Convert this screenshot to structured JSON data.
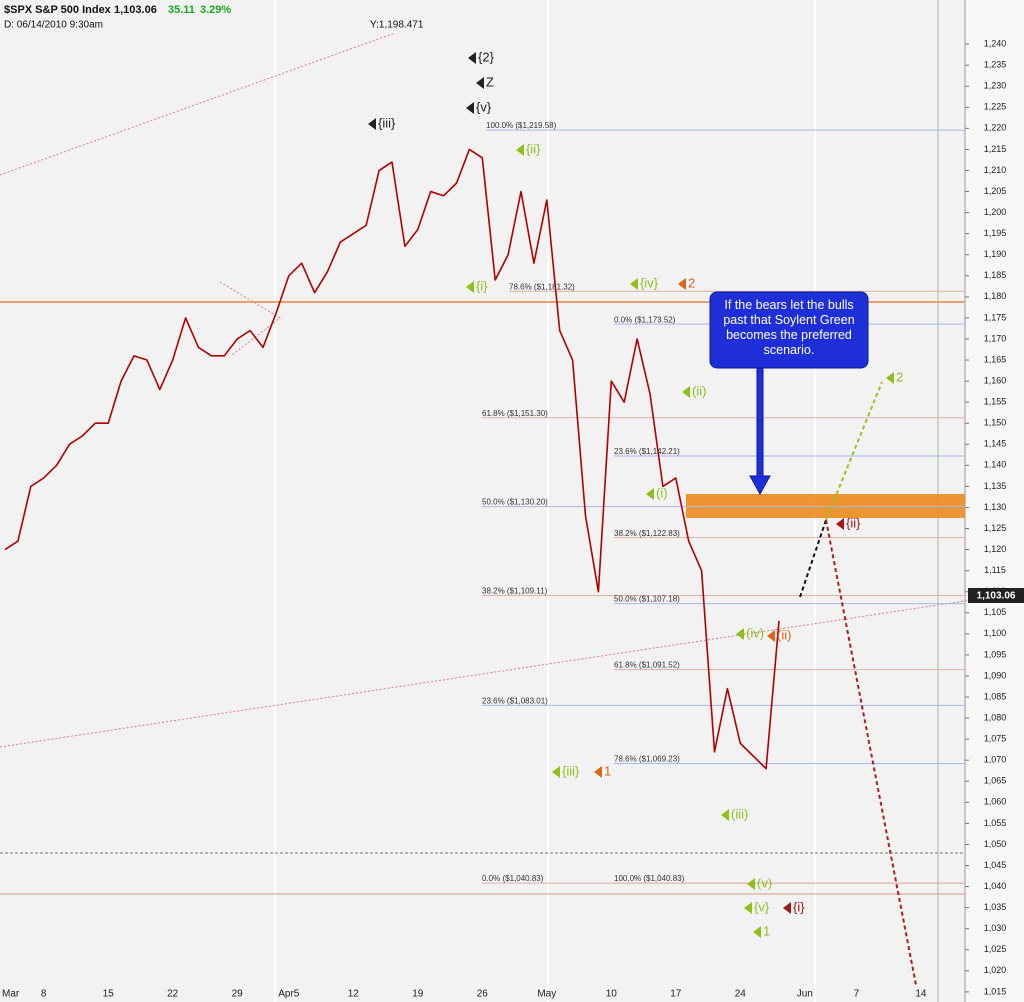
{
  "chart_data": {
    "type": "line",
    "title": "$SPX S&P 500 Index",
    "last": "1,103.06",
    "change": "35.11",
    "change_pct": "3.29%",
    "date_info": "D: 06/14/2010 9:30am",
    "cursor_info": "Y:1,198.471",
    "callout": "If the bears let the bulls past that Soylent Green becomes the preferred scenario.",
    "categories": [
      "Mar",
      null,
      null,
      "8",
      null,
      null,
      null,
      null,
      "15",
      null,
      null,
      null,
      null,
      "22",
      null,
      null,
      null,
      null,
      "29",
      null,
      null,
      null,
      "Apr5",
      null,
      null,
      null,
      null,
      "12",
      null,
      null,
      null,
      null,
      "19",
      null,
      null,
      null,
      null,
      "26",
      null,
      null,
      null,
      null,
      "May",
      null,
      null,
      null,
      null,
      "10",
      null,
      null,
      null,
      null,
      "17",
      null,
      null,
      null,
      null,
      "24",
      null,
      null,
      null,
      null,
      "Jun",
      null,
      null,
      null,
      "7",
      null,
      null,
      null,
      null,
      "14",
      null,
      null
    ],
    "series": [
      {
        "name": "$SPX",
        "color": "#b00000",
        "values": [
          1120,
          1122,
          1135,
          1137,
          1140,
          1145,
          1147,
          1150,
          1150,
          1160,
          1166,
          1165,
          1158,
          1165,
          1175,
          1168,
          1166,
          1166,
          1170,
          1172,
          1168,
          1176,
          1185,
          1188,
          1181,
          1186,
          1193,
          1195,
          1197,
          1210,
          1212,
          1192,
          1196,
          1205,
          1204,
          1207,
          1215,
          1213,
          1184,
          1190,
          1205,
          1188,
          1203,
          1172,
          1165,
          1128,
          1110,
          1160,
          1155,
          1170,
          1157,
          1135,
          1137,
          1122,
          1115,
          1072,
          1087,
          1074,
          1071,
          1068,
          1103.06,
          null,
          null,
          null,
          null,
          null,
          null,
          null,
          null,
          null,
          null,
          null,
          null,
          null
        ]
      }
    ],
    "ylim": [
      1012.6,
      1250
    ],
    "yticks": [
      {
        "value": 1015,
        "label": "1,015"
      },
      {
        "value": 1020,
        "label": "1,020"
      },
      {
        "value": 1025,
        "label": "1,025"
      },
      {
        "value": 1030,
        "label": "1,030"
      },
      {
        "value": 1035,
        "label": "1,035"
      },
      {
        "value": 1040,
        "label": "1,040"
      },
      {
        "value": 1045,
        "label": "1,045"
      },
      {
        "value": 1050,
        "label": "1,050"
      },
      {
        "value": 1055,
        "label": "1,055"
      },
      {
        "value": 1060,
        "label": "1,060"
      },
      {
        "value": 1065,
        "label": "1,065"
      },
      {
        "value": 1070,
        "label": "1,070"
      },
      {
        "value": 1075,
        "label": "1,075"
      },
      {
        "value": 1080,
        "label": "1,080"
      },
      {
        "value": 1085,
        "label": "1,085"
      },
      {
        "value": 1090,
        "label": "1,090"
      },
      {
        "value": 1095,
        "label": "1,095"
      },
      {
        "value": 1100,
        "label": "1,100"
      },
      {
        "value": 1105,
        "label": "1,105"
      },
      {
        "value": 1110,
        "label": "1,110"
      },
      {
        "value": 1115,
        "label": "1,115"
      },
      {
        "value": 1120,
        "label": "1,120"
      },
      {
        "value": 1125,
        "label": "1,125"
      },
      {
        "value": 1130,
        "label": "1,130"
      },
      {
        "value": 1135,
        "label": "1,135"
      },
      {
        "value": 1140,
        "label": "1,140"
      },
      {
        "value": 1145,
        "label": "1,145"
      },
      {
        "value": 1150,
        "label": "1,150"
      },
      {
        "value": 1155,
        "label": "1,155"
      },
      {
        "value": 1160,
        "label": "1,160"
      },
      {
        "value": 1165,
        "label": "1,165"
      },
      {
        "value": 1170,
        "label": "1,170"
      },
      {
        "value": 1175,
        "label": "1,175"
      },
      {
        "value": 1180,
        "label": "1,180"
      },
      {
        "value": 1185,
        "label": "1,185"
      },
      {
        "value": 1190,
        "label": "1,190"
      },
      {
        "value": 1195,
        "label": "1,195"
      },
      {
        "value": 1200,
        "label": "1,200"
      },
      {
        "value": 1205,
        "label": "1,205"
      },
      {
        "value": 1210,
        "label": "1,210"
      },
      {
        "value": 1215,
        "label": "1,215"
      },
      {
        "value": 1220,
        "label": "1,220"
      },
      {
        "value": 1225,
        "label": "1,225"
      },
      {
        "value": 1230,
        "label": "1,230"
      },
      {
        "value": 1235,
        "label": "1,235"
      },
      {
        "value": 1240,
        "label": "1,240"
      }
    ],
    "grid": false,
    "fib_levels": [
      {
        "value": 1219.58,
        "label": "100.0% ($1,219.58)"
      },
      {
        "value": 1181.32,
        "label": "78.6% ($1,181.32)"
      },
      {
        "value": 1173.52,
        "label": "0.0% ($1,173.52)"
      },
      {
        "value": 1151.3,
        "label": "61.8% ($1,151.30)"
      },
      {
        "value": 1130.2,
        "label": "50.0% ($1,130.20)"
      },
      {
        "value": 1109.11,
        "label": "38.2% ($1,109.11)"
      },
      {
        "value": 1083.01,
        "label": "23.6% ($1,083.01)"
      },
      {
        "value": 1040.83,
        "label": "0.0% ($1,040.83)"
      },
      {
        "value": 1142.21,
        "label": "23.6% ($1,142.21)"
      },
      {
        "value": 1122.83,
        "label": "38.2% ($1,122.83)"
      },
      {
        "value": 1107.18,
        "label": "50.0% ($1,107.18)"
      },
      {
        "value": 1091.52,
        "label": "61.8% ($1,091.52)"
      },
      {
        "value": 1069.23,
        "label": "78.6% ($1,069.23)"
      },
      {
        "value": 1040.83,
        "label": "100.0% ($1,040.83)"
      }
    ],
    "annotations": [
      {
        "text": "{2}",
        "color": "#222222"
      },
      {
        "text": "Z",
        "color": "#222222"
      },
      {
        "text": "{v}",
        "color": "#222222"
      },
      {
        "text": "{iii}",
        "color": "#222222"
      },
      {
        "text": "{ii}",
        "color": "#8fbf1f"
      },
      {
        "text": "{i}",
        "color": "#8fbf1f"
      },
      {
        "text": "{iv}",
        "color": "#8fbf1f"
      },
      {
        "text": "2",
        "color": "#d9661a"
      },
      {
        "text": "(ii)",
        "color": "#8fbf1f"
      },
      {
        "text": "(i)",
        "color": "#8fbf1f"
      },
      {
        "text": "{iii}",
        "color": "#8fbf1f"
      },
      {
        "text": "1",
        "color": "#d9661a"
      },
      {
        "text": "(iv)",
        "color": "#8fbf1f"
      },
      {
        "text": "(ii)",
        "color": "#d9661a"
      },
      {
        "text": "(iii)",
        "color": "#8fbf1f"
      },
      {
        "text": "(v)",
        "color": "#8fbf1f"
      },
      {
        "text": "{v}",
        "color": "#8fbf1f"
      },
      {
        "text": "{i}",
        "color": "#a01818"
      },
      {
        "text": "1",
        "color": "#8fbf1f"
      },
      {
        "text": "{ii}",
        "color": "#a01818"
      },
      {
        "text": "2",
        "color": "#8fbf1f"
      }
    ]
  }
}
